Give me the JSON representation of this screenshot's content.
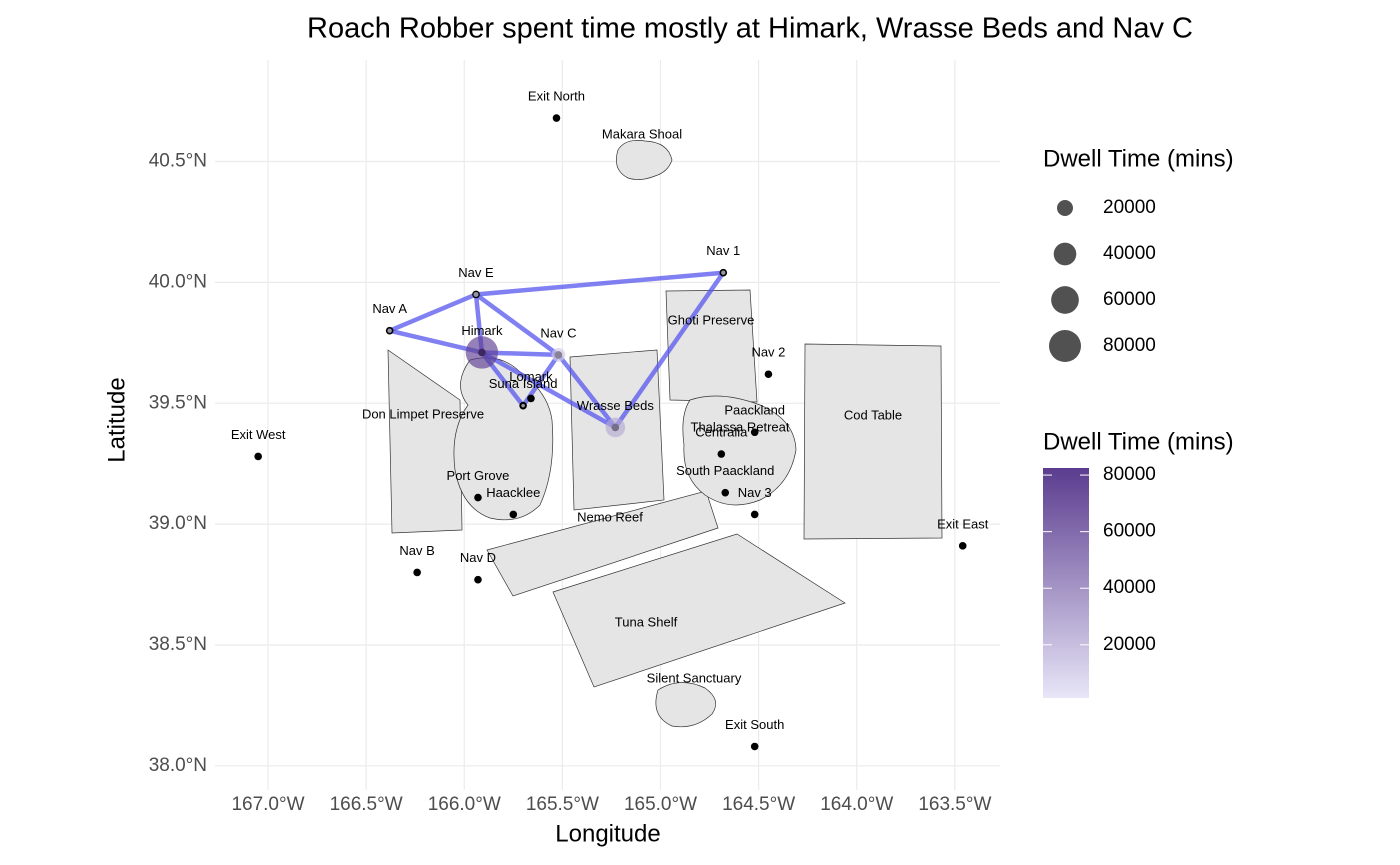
{
  "chart_data": {
    "type": "map",
    "title": "Roach Robber spent time mostly at Himark, Wrasse Beds and Nav C",
    "xlabel": "Longitude",
    "ylabel": "Latitude",
    "xlim": [
      -167.27,
      -163.27
    ],
    "ylim": [
      37.9,
      40.92
    ],
    "xticks": [
      {
        "value": -167.0,
        "label": "167.0°W"
      },
      {
        "value": -166.5,
        "label": "166.5°W"
      },
      {
        "value": -166.0,
        "label": "166.0°W"
      },
      {
        "value": -165.5,
        "label": "165.5°W"
      },
      {
        "value": -165.0,
        "label": "165.0°W"
      },
      {
        "value": -164.5,
        "label": "164.5°W"
      },
      {
        "value": -164.0,
        "label": "164.0°W"
      },
      {
        "value": -163.5,
        "label": "163.5°W"
      }
    ],
    "yticks": [
      {
        "value": 38.0,
        "label": "38.0°N"
      },
      {
        "value": 38.5,
        "label": "38.5°N"
      },
      {
        "value": 39.0,
        "label": "39.0°N"
      },
      {
        "value": 39.5,
        "label": "39.5°N"
      },
      {
        "value": 40.0,
        "label": "40.0°N"
      },
      {
        "value": 40.5,
        "label": "40.5°N"
      }
    ],
    "grid": true,
    "locations": {
      "names": [
        "Exit North",
        "Nav 1",
        "Nav E",
        "Nav A",
        "Himark",
        "Nav C",
        "Nav 2",
        "Lomark",
        "Suna Island",
        "Wrasse Beds",
        "Paackland",
        "Centralia",
        "Exit West",
        "South Paackland",
        "Port Grove",
        "Haacklee",
        "Nav 3",
        "Exit East",
        "Nav B",
        "Nav D",
        "Exit South"
      ],
      "lon": [
        -165.53,
        -164.68,
        -165.94,
        -166.38,
        -165.91,
        -165.52,
        -164.45,
        -165.66,
        -165.7,
        -165.23,
        -164.52,
        -164.69,
        -167.05,
        -164.67,
        -165.93,
        -165.75,
        -164.52,
        -163.46,
        -166.24,
        -165.93,
        -164.52
      ],
      "lat": [
        40.68,
        40.04,
        39.95,
        39.8,
        39.71,
        39.7,
        39.62,
        39.52,
        39.49,
        39.4,
        39.38,
        39.29,
        39.28,
        39.13,
        39.11,
        39.04,
        39.04,
        38.91,
        38.8,
        38.77,
        38.08
      ]
    },
    "regions": [
      "Makara Shoal",
      "Ghoti Preserve",
      "Don Limpet Preserve",
      "Cod Table",
      "Thalassa Retreat",
      "Nemo Reef",
      "Tuna Shelf",
      "Silent Sanctuary"
    ],
    "route": [
      [
        "Nav A",
        "Nav E"
      ],
      [
        "Nav E",
        "Nav 1"
      ],
      [
        "Nav 1",
        "Wrasse Beds"
      ],
      [
        "Nav A",
        "Himark"
      ],
      [
        "Nav E",
        "Himark"
      ],
      [
        "Nav E",
        "Nav C"
      ],
      [
        "Himark",
        "Nav C"
      ],
      [
        "Himark",
        "Wrasse Beds"
      ],
      [
        "Nav C",
        "Wrasse Beds"
      ],
      [
        "Himark",
        "Suna Island"
      ],
      [
        "Suna Island",
        "Nav C"
      ]
    ],
    "route_color": "#5555ee",
    "dwell": {
      "locations": [
        "Himark",
        "Wrasse Beds",
        "Nav C",
        "Nav E",
        "Nav A",
        "Nav 1",
        "Suna Island"
      ],
      "values": [
        82000,
        30000,
        15000,
        2000,
        1500,
        1500,
        1000
      ]
    },
    "size_legend": {
      "title": "Dwell Time (mins)",
      "breaks": [
        20000,
        40000,
        60000,
        80000
      ]
    },
    "color_legend": {
      "title": "Dwell Time (mins)",
      "breaks": [
        20000,
        40000,
        60000,
        80000
      ],
      "limits": [
        1200,
        82500
      ],
      "colors": [
        "#e8e6f7",
        "#5b3c8f"
      ]
    }
  }
}
